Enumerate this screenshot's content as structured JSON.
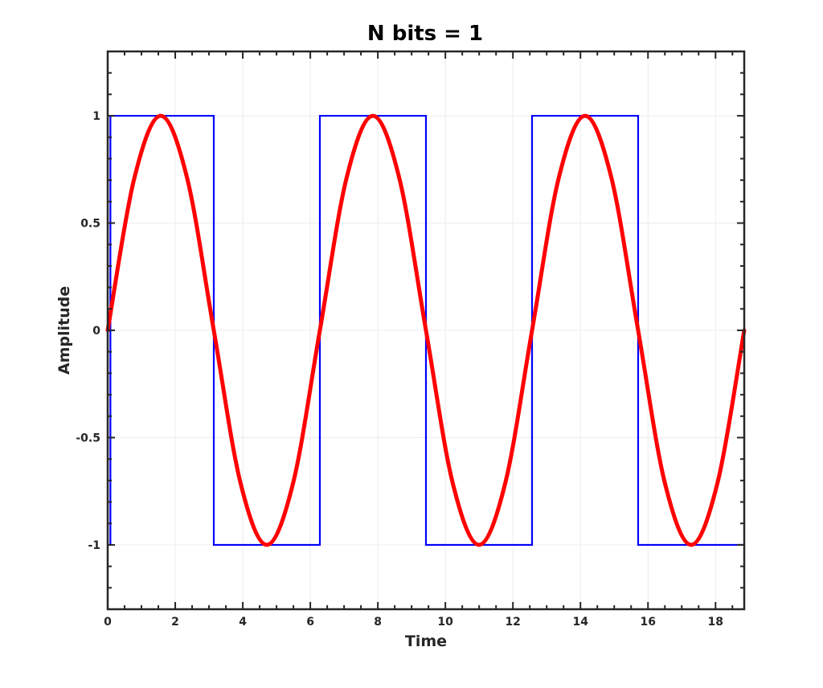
{
  "chart_data": {
    "type": "line",
    "title": "N bits = 1",
    "xlabel": "Time",
    "ylabel": "Amplitude",
    "xlim": [
      0,
      18.85
    ],
    "ylim": [
      -1.3,
      1.3
    ],
    "xticks": [
      0,
      2,
      4,
      6,
      8,
      10,
      12,
      14,
      16,
      18
    ],
    "yticks": [
      -1,
      -0.5,
      0,
      0.5,
      1
    ],
    "xtick_labels": [
      "0",
      "2",
      "4",
      "6",
      "8",
      "10",
      "12",
      "14",
      "16",
      "18"
    ],
    "ytick_labels": [
      "-1",
      "-0.5",
      "0",
      "0.5",
      "1"
    ],
    "grid": true,
    "series": [
      {
        "color": "#0000ff",
        "style": "step",
        "x": [
          0,
          0.08,
          3.1416,
          6.2832,
          9.4248,
          12.5664,
          15.708,
          18.85
        ],
        "y": [
          -1,
          1,
          -1,
          1,
          -1,
          1,
          -1,
          -1
        ]
      },
      {
        "color": "#ff0000",
        "style": "line",
        "x": [
          0,
          0.7854,
          1.5708,
          2.3562,
          3.1416,
          3.927,
          4.7124,
          5.4978,
          6.2832,
          7.0686,
          7.854,
          8.6394,
          9.4248,
          10.2102,
          10.9956,
          11.781,
          12.5664,
          13.3518,
          14.1372,
          14.9226,
          15.708,
          16.4934,
          17.2788,
          18.0642,
          18.8496
        ],
        "y": [
          0,
          0.7071,
          1,
          0.7071,
          0,
          -0.7071,
          -1,
          -0.7071,
          0,
          0.7071,
          1,
          0.7071,
          0,
          -0.7071,
          -1,
          -0.7071,
          0,
          0.7071,
          1,
          0.7071,
          0,
          -0.7071,
          -1,
          -0.7071,
          0
        ]
      }
    ]
  }
}
